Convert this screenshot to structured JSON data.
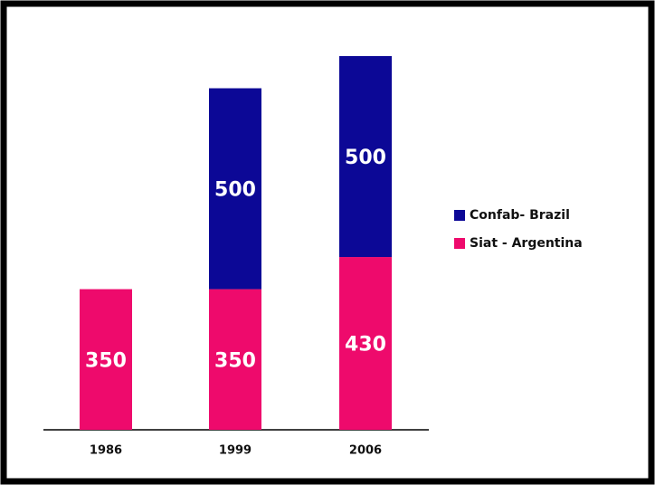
{
  "chart_data": {
    "type": "stacked-bar",
    "categories": [
      "1986",
      "1999",
      "2006"
    ],
    "series": [
      {
        "name": "Siat - Argentina",
        "color": "#ee0a6c",
        "values": [
          350,
          350,
          430
        ]
      },
      {
        "name": "Confab- Brazil",
        "color": "#0c0896",
        "values": [
          null,
          500,
          500
        ]
      }
    ],
    "legend": "right"
  }
}
